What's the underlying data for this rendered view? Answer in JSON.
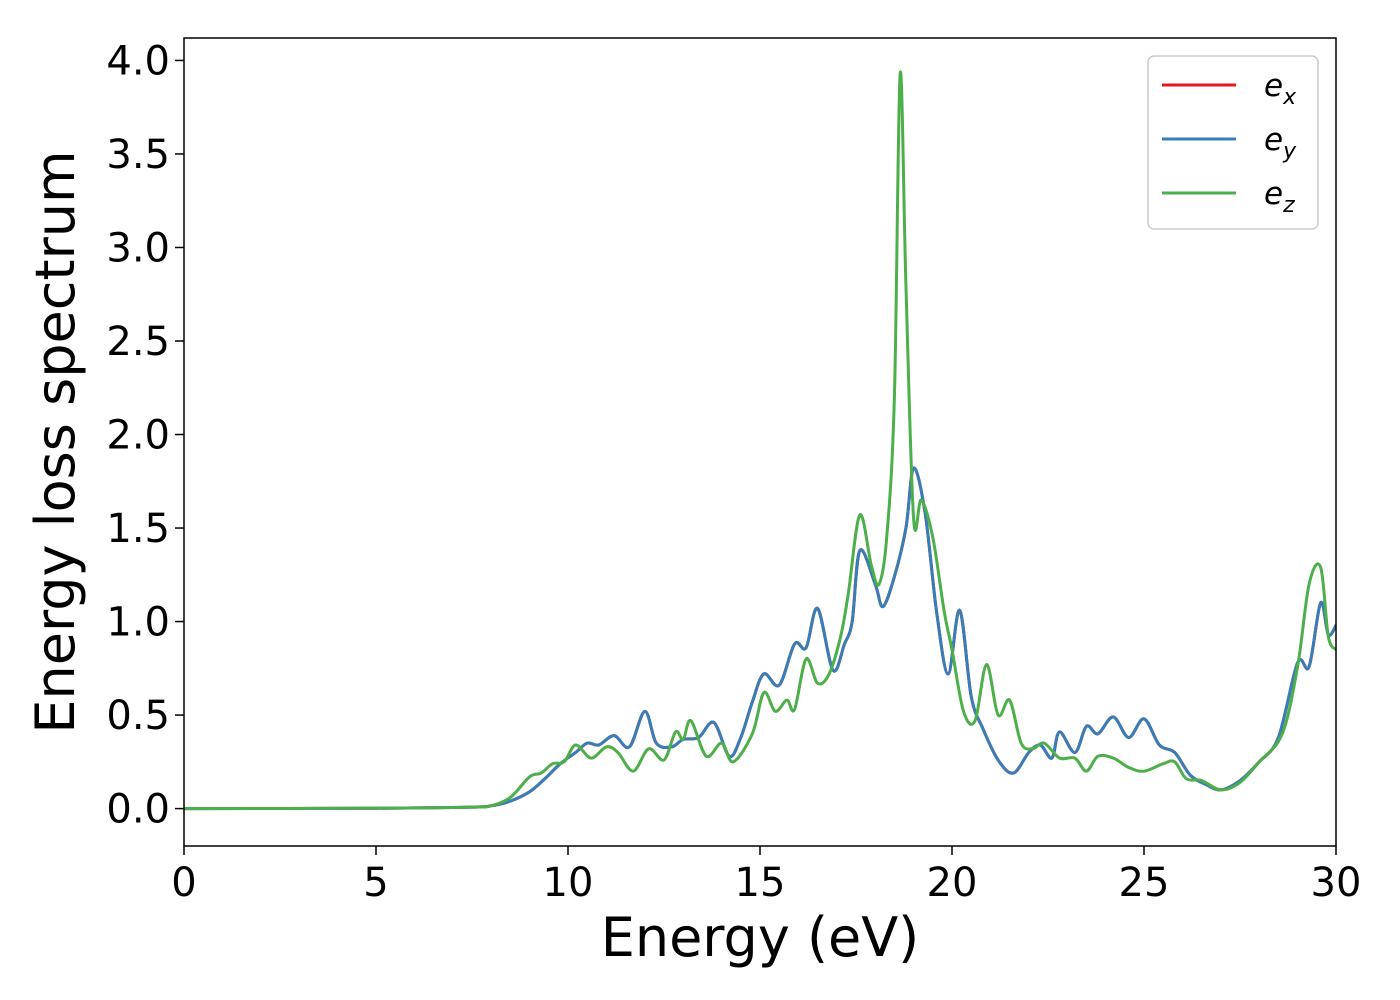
{
  "chart_data": {
    "type": "line",
    "title": "",
    "xlabel": "Energy (eV)",
    "ylabel": "Energy loss spectrum",
    "xlim": [
      0,
      30
    ],
    "ylim": [
      -0.2,
      4.12
    ],
    "xticks": [
      0,
      5,
      10,
      15,
      20,
      25,
      30
    ],
    "xtick_labels": [
      "0",
      "5",
      "10",
      "15",
      "20",
      "25",
      "30"
    ],
    "yticks": [
      0.0,
      0.5,
      1.0,
      1.5,
      2.0,
      2.5,
      3.0,
      3.5,
      4.0
    ],
    "ytick_labels": [
      "0.0",
      "0.5",
      "1.0",
      "1.5",
      "2.0",
      "2.5",
      "3.0",
      "3.5",
      "4.0"
    ],
    "grid": false,
    "legend_position": "top-right",
    "series": [
      {
        "name": "e_x",
        "label_base": "e",
        "label_sub": "x",
        "color": "#e41a1c",
        "points": [
          [
            0,
            0
          ],
          [
            5,
            0.002
          ],
          [
            7.5,
            0.008
          ],
          [
            8.0,
            0.015
          ],
          [
            8.5,
            0.04
          ],
          [
            9.0,
            0.09
          ],
          [
            9.4,
            0.16
          ],
          [
            9.8,
            0.24
          ],
          [
            10.2,
            0.3
          ],
          [
            10.5,
            0.35
          ],
          [
            10.8,
            0.34
          ],
          [
            11.2,
            0.39
          ],
          [
            11.6,
            0.33
          ],
          [
            12.0,
            0.52
          ],
          [
            12.3,
            0.35
          ],
          [
            12.7,
            0.33
          ],
          [
            13.0,
            0.37
          ],
          [
            13.4,
            0.38
          ],
          [
            13.8,
            0.46
          ],
          [
            14.2,
            0.28
          ],
          [
            14.5,
            0.38
          ],
          [
            14.8,
            0.57
          ],
          [
            15.1,
            0.72
          ],
          [
            15.5,
            0.66
          ],
          [
            15.9,
            0.88
          ],
          [
            16.2,
            0.86
          ],
          [
            16.5,
            1.07
          ],
          [
            16.9,
            0.74
          ],
          [
            17.2,
            0.88
          ],
          [
            17.4,
            1.0
          ],
          [
            17.6,
            1.38
          ],
          [
            18.0,
            1.2
          ],
          [
            18.2,
            1.08
          ],
          [
            18.5,
            1.24
          ],
          [
            18.8,
            1.5
          ],
          [
            19.0,
            1.82
          ],
          [
            19.3,
            1.58
          ],
          [
            19.6,
            1.05
          ],
          [
            19.9,
            0.72
          ],
          [
            20.2,
            1.06
          ],
          [
            20.5,
            0.6
          ],
          [
            20.8,
            0.43
          ],
          [
            21.2,
            0.26
          ],
          [
            21.6,
            0.19
          ],
          [
            22.0,
            0.3
          ],
          [
            22.3,
            0.34
          ],
          [
            22.6,
            0.27
          ],
          [
            22.8,
            0.41
          ],
          [
            23.2,
            0.3
          ],
          [
            23.5,
            0.44
          ],
          [
            23.8,
            0.4
          ],
          [
            24.2,
            0.49
          ],
          [
            24.6,
            0.38
          ],
          [
            25.0,
            0.48
          ],
          [
            25.4,
            0.34
          ],
          [
            25.8,
            0.3
          ],
          [
            26.2,
            0.18
          ],
          [
            26.6,
            0.13
          ],
          [
            27.0,
            0.1
          ],
          [
            27.5,
            0.15
          ],
          [
            28.0,
            0.25
          ],
          [
            28.5,
            0.38
          ],
          [
            29.0,
            0.78
          ],
          [
            29.3,
            0.76
          ],
          [
            29.6,
            1.1
          ],
          [
            29.8,
            0.93
          ],
          [
            30.0,
            0.98
          ]
        ]
      },
      {
        "name": "e_y",
        "label_base": "e",
        "label_sub": "y",
        "color": "#377eb8",
        "points": [
          [
            0,
            0
          ],
          [
            5,
            0.002
          ],
          [
            7.5,
            0.008
          ],
          [
            8.0,
            0.015
          ],
          [
            8.5,
            0.04
          ],
          [
            9.0,
            0.09
          ],
          [
            9.4,
            0.16
          ],
          [
            9.8,
            0.24
          ],
          [
            10.2,
            0.3
          ],
          [
            10.5,
            0.35
          ],
          [
            10.8,
            0.34
          ],
          [
            11.2,
            0.39
          ],
          [
            11.6,
            0.33
          ],
          [
            12.0,
            0.52
          ],
          [
            12.3,
            0.35
          ],
          [
            12.7,
            0.33
          ],
          [
            13.0,
            0.37
          ],
          [
            13.4,
            0.38
          ],
          [
            13.8,
            0.46
          ],
          [
            14.2,
            0.28
          ],
          [
            14.5,
            0.38
          ],
          [
            14.8,
            0.57
          ],
          [
            15.1,
            0.72
          ],
          [
            15.5,
            0.66
          ],
          [
            15.9,
            0.88
          ],
          [
            16.2,
            0.86
          ],
          [
            16.5,
            1.07
          ],
          [
            16.9,
            0.74
          ],
          [
            17.2,
            0.88
          ],
          [
            17.4,
            1.0
          ],
          [
            17.6,
            1.38
          ],
          [
            18.0,
            1.2
          ],
          [
            18.2,
            1.08
          ],
          [
            18.5,
            1.24
          ],
          [
            18.8,
            1.5
          ],
          [
            19.0,
            1.82
          ],
          [
            19.3,
            1.58
          ],
          [
            19.6,
            1.05
          ],
          [
            19.9,
            0.72
          ],
          [
            20.2,
            1.06
          ],
          [
            20.5,
            0.6
          ],
          [
            20.8,
            0.43
          ],
          [
            21.2,
            0.26
          ],
          [
            21.6,
            0.19
          ],
          [
            22.0,
            0.3
          ],
          [
            22.3,
            0.34
          ],
          [
            22.6,
            0.27
          ],
          [
            22.8,
            0.41
          ],
          [
            23.2,
            0.3
          ],
          [
            23.5,
            0.44
          ],
          [
            23.8,
            0.4
          ],
          [
            24.2,
            0.49
          ],
          [
            24.6,
            0.38
          ],
          [
            25.0,
            0.48
          ],
          [
            25.4,
            0.34
          ],
          [
            25.8,
            0.3
          ],
          [
            26.2,
            0.18
          ],
          [
            26.6,
            0.13
          ],
          [
            27.0,
            0.1
          ],
          [
            27.5,
            0.15
          ],
          [
            28.0,
            0.25
          ],
          [
            28.5,
            0.38
          ],
          [
            29.0,
            0.78
          ],
          [
            29.3,
            0.76
          ],
          [
            29.6,
            1.1
          ],
          [
            29.8,
            0.93
          ],
          [
            30.0,
            0.98
          ]
        ]
      },
      {
        "name": "e_z",
        "label_base": "e",
        "label_sub": "z",
        "color": "#4daf4a",
        "points": [
          [
            0,
            0
          ],
          [
            5,
            0.002
          ],
          [
            7.5,
            0.008
          ],
          [
            8.0,
            0.015
          ],
          [
            8.5,
            0.06
          ],
          [
            9.0,
            0.17
          ],
          [
            9.3,
            0.19
          ],
          [
            9.6,
            0.24
          ],
          [
            9.9,
            0.25
          ],
          [
            10.2,
            0.34
          ],
          [
            10.6,
            0.27
          ],
          [
            11.0,
            0.33
          ],
          [
            11.3,
            0.3
          ],
          [
            11.7,
            0.2
          ],
          [
            12.1,
            0.32
          ],
          [
            12.5,
            0.26
          ],
          [
            12.8,
            0.41
          ],
          [
            13.0,
            0.37
          ],
          [
            13.2,
            0.47
          ],
          [
            13.6,
            0.28
          ],
          [
            14.0,
            0.35
          ],
          [
            14.3,
            0.25
          ],
          [
            14.8,
            0.4
          ],
          [
            15.1,
            0.62
          ],
          [
            15.4,
            0.52
          ],
          [
            15.7,
            0.58
          ],
          [
            15.9,
            0.53
          ],
          [
            16.2,
            0.8
          ],
          [
            16.5,
            0.67
          ],
          [
            16.8,
            0.72
          ],
          [
            17.1,
            0.92
          ],
          [
            17.3,
            1.15
          ],
          [
            17.6,
            1.57
          ],
          [
            17.9,
            1.3
          ],
          [
            18.1,
            1.2
          ],
          [
            18.3,
            1.45
          ],
          [
            18.5,
            2.2
          ],
          [
            18.65,
            3.93
          ],
          [
            18.8,
            2.8
          ],
          [
            19.0,
            1.55
          ],
          [
            19.2,
            1.65
          ],
          [
            19.5,
            1.45
          ],
          [
            19.8,
            1.05
          ],
          [
            20.0,
            0.85
          ],
          [
            20.3,
            0.52
          ],
          [
            20.6,
            0.47
          ],
          [
            20.9,
            0.77
          ],
          [
            21.2,
            0.5
          ],
          [
            21.5,
            0.58
          ],
          [
            21.8,
            0.35
          ],
          [
            22.1,
            0.32
          ],
          [
            22.4,
            0.35
          ],
          [
            22.8,
            0.27
          ],
          [
            23.2,
            0.27
          ],
          [
            23.5,
            0.2
          ],
          [
            23.8,
            0.28
          ],
          [
            24.2,
            0.27
          ],
          [
            24.6,
            0.22
          ],
          [
            25.0,
            0.2
          ],
          [
            25.5,
            0.24
          ],
          [
            25.8,
            0.25
          ],
          [
            26.1,
            0.16
          ],
          [
            26.5,
            0.15
          ],
          [
            27.0,
            0.1
          ],
          [
            27.5,
            0.14
          ],
          [
            28.0,
            0.25
          ],
          [
            28.6,
            0.4
          ],
          [
            29.0,
            0.76
          ],
          [
            29.3,
            1.2
          ],
          [
            29.6,
            1.29
          ],
          [
            29.8,
            0.92
          ],
          [
            30.0,
            0.85
          ]
        ]
      }
    ]
  }
}
